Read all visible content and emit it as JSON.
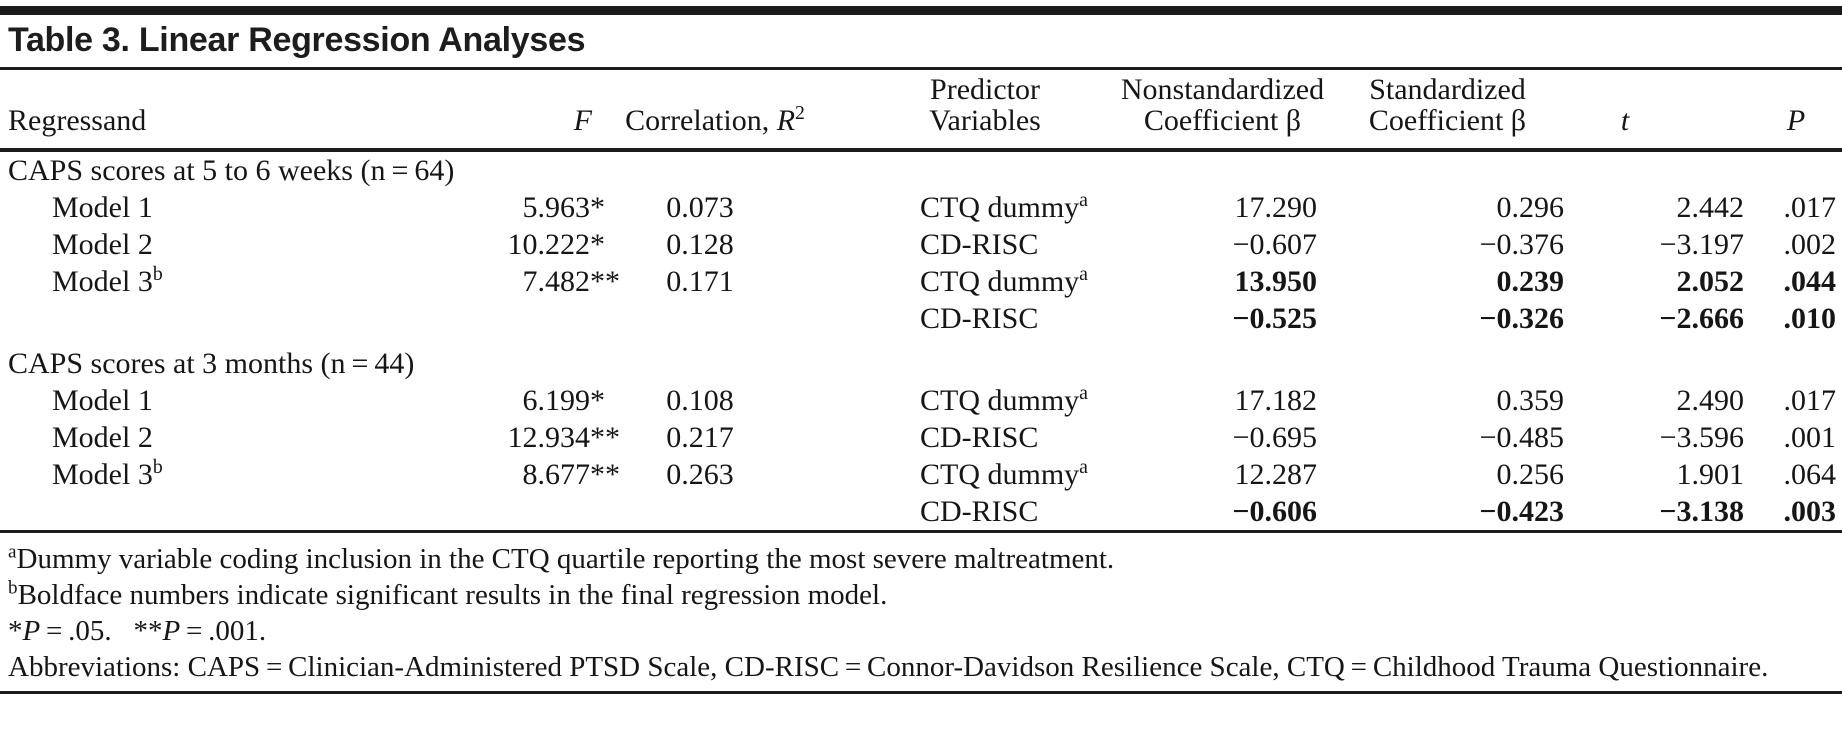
{
  "page": {
    "title": "Table 3. Linear Regression Analyses"
  },
  "table": {
    "headers": {
      "regressand": "Regressand",
      "f": "F",
      "correlation_prefix": "Correlation, ",
      "correlation_r": "R",
      "correlation_sup": "2",
      "predictor_line1": "Predictor",
      "predictor_line2": "Variables",
      "nonstd_line1": "Nonstandardized",
      "nonstd_line2": "Coefficient β",
      "std_line1": "Standardized",
      "std_line2": "Coefficient β",
      "t": "t",
      "p": "P"
    },
    "sections": [
      {
        "label": "CAPS scores at 5 to 6 weeks (n = 64)",
        "rows": [
          {
            "regressand": "Model 1",
            "regressand_sup": "",
            "indent": true,
            "f": "5.963",
            "f_star": "*",
            "r2": "0.073",
            "predictor": "CTQ dummy",
            "predictor_sup": "a",
            "b": "17.290",
            "beta": "0.296",
            "t": "2.442",
            "p": ".017",
            "bold_vals": false
          },
          {
            "regressand": "Model 2",
            "regressand_sup": "",
            "indent": true,
            "f": "10.222",
            "f_star": "*",
            "r2": "0.128",
            "predictor": "CD-RISC",
            "predictor_sup": "",
            "b": "−0.607",
            "beta": "−0.376",
            "t": "−3.197",
            "p": ".002",
            "bold_vals": false
          },
          {
            "regressand": "Model 3",
            "regressand_sup": "b",
            "indent": true,
            "f": "7.482",
            "f_star": "**",
            "r2": "0.171",
            "predictor": "CTQ dummy",
            "predictor_sup": "a",
            "b": "13.950",
            "beta": "0.239",
            "t": "2.052",
            "p": ".044",
            "bold_vals": true
          },
          {
            "regressand": "",
            "regressand_sup": "",
            "indent": false,
            "f": "",
            "f_star": "",
            "r2": "",
            "predictor": "CD-RISC",
            "predictor_sup": "",
            "b": "−0.525",
            "beta": "−0.326",
            "t": "−2.666",
            "p": ".010",
            "bold_vals": true
          }
        ]
      },
      {
        "label": "CAPS scores at 3 months (n = 44)",
        "rows": [
          {
            "regressand": "Model 1",
            "regressand_sup": "",
            "indent": true,
            "f": "6.199",
            "f_star": "*",
            "r2": "0.108",
            "predictor": "CTQ dummy",
            "predictor_sup": "a",
            "b": "17.182",
            "beta": "0.359",
            "t": "2.490",
            "p": ".017",
            "bold_vals": false
          },
          {
            "regressand": "Model 2",
            "regressand_sup": "",
            "indent": true,
            "f": "12.934",
            "f_star": "**",
            "r2": "0.217",
            "predictor": "CD-RISC",
            "predictor_sup": "",
            "b": "−0.695",
            "beta": "−0.485",
            "t": "−3.596",
            "p": ".001",
            "bold_vals": false
          },
          {
            "regressand": "Model 3",
            "regressand_sup": "b",
            "indent": true,
            "f": "8.677",
            "f_star": "**",
            "r2": "0.263",
            "predictor": "CTQ dummy",
            "predictor_sup": "a",
            "b": "12.287",
            "beta": "0.256",
            "t": "1.901",
            "p": ".064",
            "bold_vals": false
          },
          {
            "regressand": "",
            "regressand_sup": "",
            "indent": false,
            "f": "",
            "f_star": "",
            "r2": "",
            "predictor": "CD-RISC",
            "predictor_sup": "",
            "b": "−0.606",
            "beta": "−0.423",
            "t": "−3.138",
            "p": ".003",
            "bold_vals": true
          }
        ]
      }
    ]
  },
  "footnotes": {
    "a": {
      "sup": "a",
      "text": "Dummy variable coding inclusion in the CTQ quartile reporting the most severe maltreatment."
    },
    "b": {
      "sup": "b",
      "text": "Boldface numbers indicate significant results in the final regression model."
    },
    "significance": [
      {
        "t": "*"
      },
      {
        "t": "P",
        "i": true
      },
      {
        "t": " = .05.  "
      },
      {
        "t": "**"
      },
      {
        "t": "P",
        "i": true
      },
      {
        "t": " = .001."
      }
    ],
    "abbreviations": "Abbreviations: CAPS = Clinician-Administered PTSD Scale, CD-RISC = Connor-Davidson Resilience Scale, CTQ = Childhood Trauma Questionnaire."
  }
}
